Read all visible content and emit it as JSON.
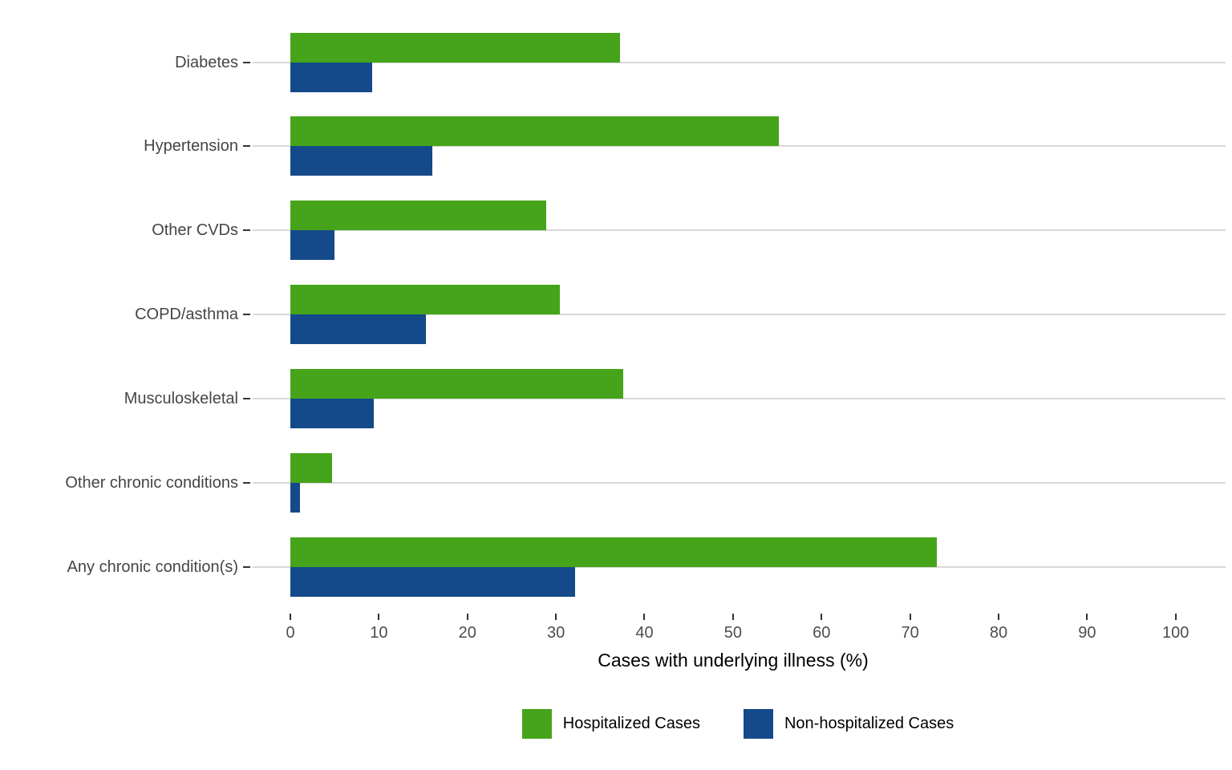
{
  "chart_data": {
    "type": "bar",
    "orientation": "horizontal",
    "title": "",
    "xlabel": "Cases with underlying illness (%)",
    "ylabel": "",
    "xlim": [
      0,
      100
    ],
    "xticks": [
      0,
      10,
      20,
      30,
      40,
      50,
      60,
      70,
      80,
      90,
      100
    ],
    "grid": "horizontal category gridlines only",
    "legend_position": "bottom",
    "categories": [
      "Diabetes",
      "Hypertension",
      "Other CVDs",
      "COPD/asthma",
      "Musculoskeletal",
      "Other chronic conditions",
      "Any chronic condition(s)"
    ],
    "series": [
      {
        "name": "Hospitalized Cases",
        "color": "#46A41A",
        "values": [
          37.2,
          55.2,
          28.9,
          30.4,
          37.6,
          4.7,
          73.0
        ]
      },
      {
        "name": "Non-hospitalized Cases",
        "color": "#14498A",
        "values": [
          9.2,
          16.0,
          5.0,
          15.3,
          9.4,
          1.1,
          32.2
        ]
      }
    ]
  },
  "colors": {
    "hospitalized": "#46A41A",
    "non_hospitalized": "#14498A",
    "gridline": "#d9d9d9",
    "tick": "#333333",
    "category_text": "#454545",
    "tick_text": "#4d4d4d"
  }
}
